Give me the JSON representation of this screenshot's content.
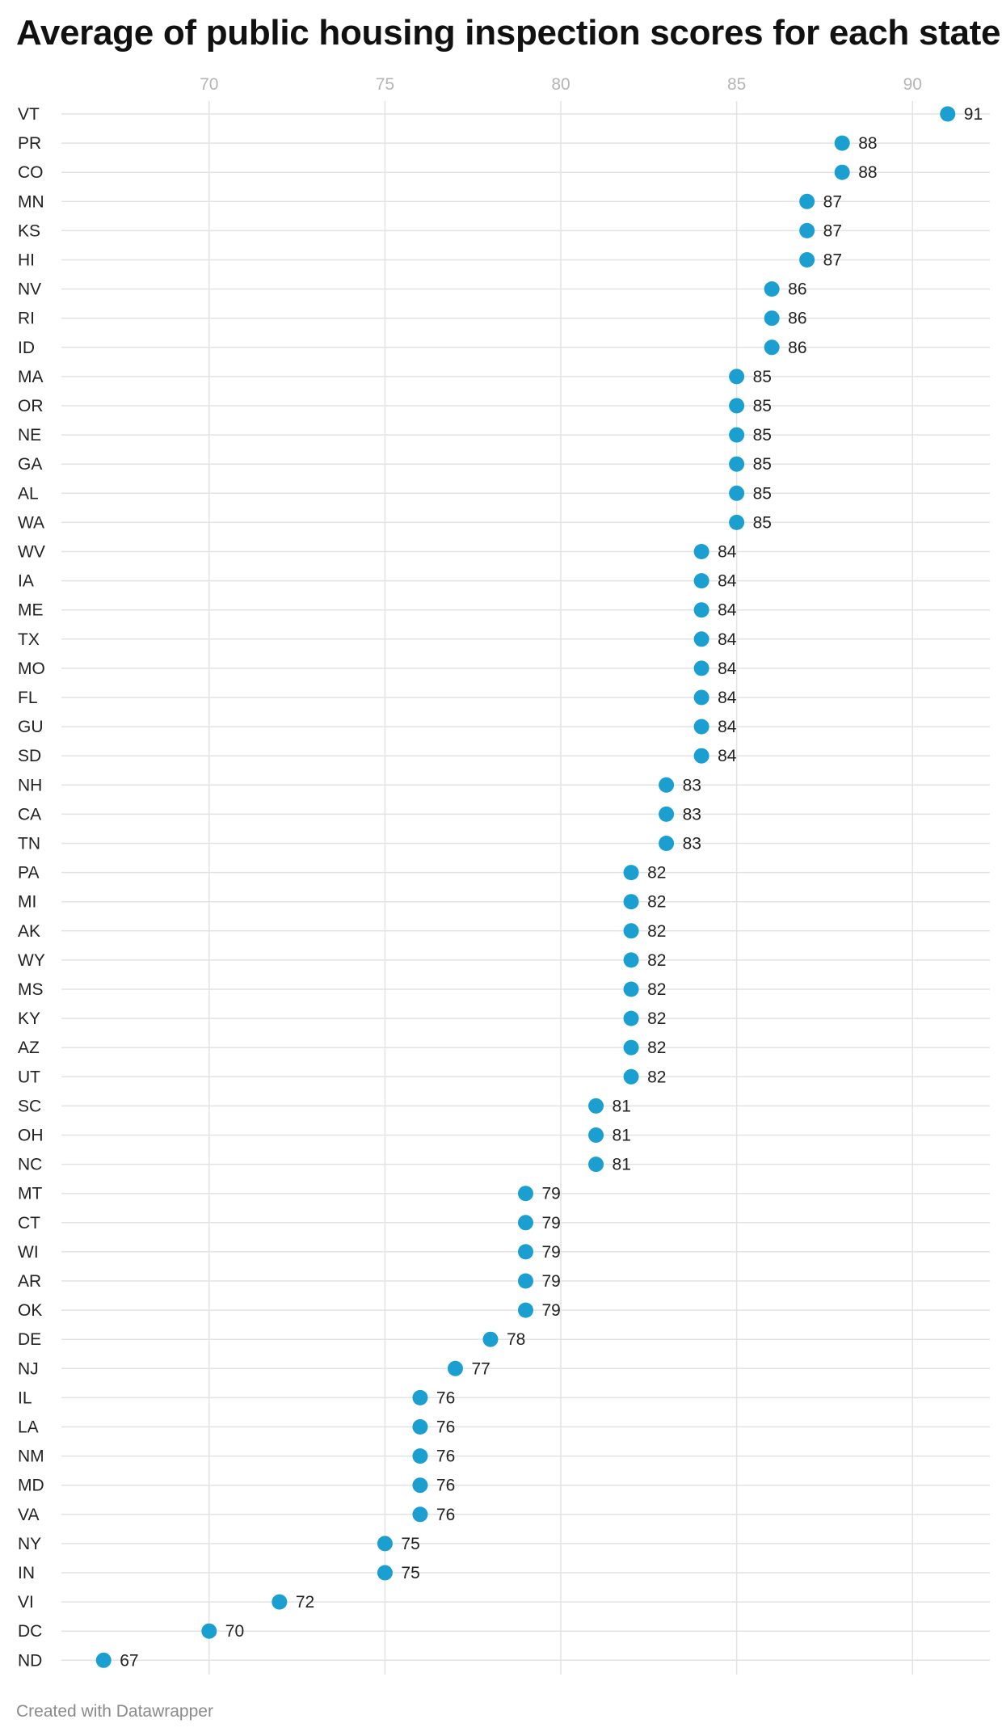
{
  "title": "Average of public housing inspection scores for each state",
  "footer": "Created with Datawrapper",
  "colors": {
    "dot": "#1a9fd0",
    "grid": "#e3e3e3",
    "tick_text": "#b5b5b5",
    "label_text": "#222222"
  },
  "chart_data": {
    "type": "scatter",
    "title": "Average of public housing inspection scores for each state",
    "xlabel": "",
    "ylabel": "",
    "xlim": [
      65.8,
      92.2
    ],
    "x_ticks": [
      70,
      75,
      80,
      85,
      90
    ],
    "x_tick_labels": [
      "70",
      "75",
      "80",
      "85",
      "90"
    ],
    "grid": true,
    "categories": [
      "VT",
      "PR",
      "CO",
      "MN",
      "KS",
      "HI",
      "NV",
      "RI",
      "ID",
      "MA",
      "OR",
      "NE",
      "GA",
      "AL",
      "WA",
      "WV",
      "IA",
      "ME",
      "TX",
      "MO",
      "FL",
      "GU",
      "SD",
      "NH",
      "CA",
      "TN",
      "PA",
      "MI",
      "AK",
      "WY",
      "MS",
      "KY",
      "AZ",
      "UT",
      "SC",
      "OH",
      "NC",
      "MT",
      "CT",
      "WI",
      "AR",
      "OK",
      "DE",
      "NJ",
      "IL",
      "LA",
      "NM",
      "MD",
      "VA",
      "NY",
      "IN",
      "VI",
      "DC",
      "ND"
    ],
    "values": [
      91,
      88,
      88,
      87,
      87,
      87,
      86,
      86,
      86,
      85,
      85,
      85,
      85,
      85,
      85,
      84,
      84,
      84,
      84,
      84,
      84,
      84,
      84,
      83,
      83,
      83,
      82,
      82,
      82,
      82,
      82,
      82,
      82,
      82,
      81,
      81,
      81,
      79,
      79,
      79,
      79,
      79,
      78,
      77,
      76,
      76,
      76,
      76,
      76,
      75,
      75,
      72,
      70,
      67
    ]
  }
}
